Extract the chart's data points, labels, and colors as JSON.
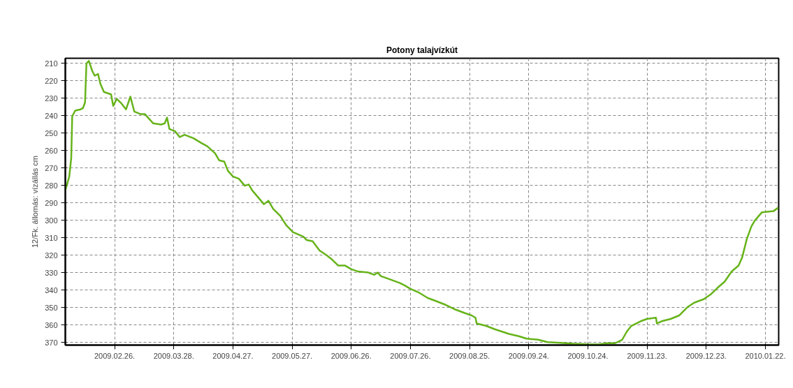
{
  "chart_data": {
    "type": "line",
    "title": "Potony talajvízkút",
    "ylabel": "12/Fk. állomás: vízállás cm",
    "x": [
      "2009-02-01",
      "2009-02-03",
      "2009-02-04",
      "2009-02-04T12:00",
      "2009-02-06",
      "2009-02-08T19:00",
      "2009-02-09T22:00",
      "2009-02-11",
      "2009-02-11T17:00",
      "2009-02-12T22:00",
      "2009-02-14T17:00",
      "2009-02-15T22:00",
      "2009-02-17T14:00",
      "2009-02-18T19:00",
      "2009-02-20T14:00",
      "2009-02-24T05:00",
      "2009-02-25T07:00",
      "2009-02-27T02:00",
      "2009-03-01T12:00",
      "2009-03-03T19:00",
      "2009-03-06",
      "2009-03-08",
      "2009-03-11",
      "2009-03-13T07:00",
      "2009-03-17T12:00",
      "2009-03-21T14:00",
      "2009-03-23T10:00",
      "2009-03-24T14:00",
      "2009-03-25T19:00",
      "2009-03-28T17:00",
      "2009-03-31",
      "2009-04-02T12:00",
      "2009-04-07",
      "2009-04-10T19:00",
      "2009-04-14",
      "2009-04-17T22:00",
      "2009-04-20",
      "2009-04-22T14:00",
      "2009-04-24T10:00",
      "2009-04-27",
      "2009-04-30",
      "2009-05-03",
      "2009-05-05",
      "2009-05-06T19:00",
      "2009-05-12T17:00",
      "2009-05-15",
      "2009-05-17T10:00",
      "2009-05-21",
      "2009-05-24",
      "2009-05-27T10:00",
      "2009-06-01T17:00",
      "2009-06-03T10:00",
      "2009-06-06T10:00",
      "2009-06-09T22:00",
      "2009-06-13T12:00",
      "2009-06-16T10:00",
      "2009-06-19T10:00",
      "2009-06-22T22:00",
      "2009-06-25T22:00",
      "2009-06-29T10:00",
      "2009-07-04T17:00",
      "2009-07-07T17:00",
      "2009-07-09T10:00",
      "2009-07-11",
      "2009-07-15T22:00",
      "2009-07-20T17:00",
      "2009-07-23",
      "2009-07-26",
      "2009-07-30",
      "2009-08-03T19:00",
      "2009-08-08T12:00",
      "2009-08-13",
      "2009-08-18",
      "2009-08-22T17:00",
      "2009-08-26",
      "2009-08-28",
      "2009-08-28T14:00",
      "2009-09-02T10:00",
      "2009-09-07",
      "2009-09-14",
      "2009-09-18T22:00",
      "2009-09-22T22:00",
      "2009-09-28T19:00",
      "2009-10-03T12:00",
      "2009-10-10",
      "2009-10-16T12:00",
      "2009-10-24T19:00",
      "2009-10-29T12:00",
      "2009-11-03",
      "2009-11-06T19:00",
      "2009-11-10T10:00",
      "2009-11-12T17:00",
      "2009-11-15",
      "2009-11-19T19:00",
      "2009-11-23",
      "2009-11-27T12:00",
      "2009-11-28",
      "2009-11-30T10:00",
      "2009-12-05",
      "2009-12-09T07:00",
      "2009-12-13T10:00",
      "2009-12-16T22:00",
      "2009-12-21T17:00",
      "2009-12-25T05:00",
      "2009-12-28T19:00",
      "2010-01-01T07:00",
      "2010-01-04T22:00",
      "2010-01-08T10:00",
      "2010-01-10T05:00",
      "2010-01-12T14:00",
      "2010-01-14T22:00",
      "2010-01-16T17:00",
      "2010-01-20T05:00",
      "2010-01-26T02:00",
      "2010-01-28T12:00"
    ],
    "series": [
      {
        "color": "#66b31a",
        "values": [
          282.8,
          274.8,
          264.2,
          240.3,
          237.0,
          236.3,
          235.6,
          232.3,
          210.0,
          208.5,
          214.4,
          217.0,
          216.0,
          221.7,
          226.3,
          227.7,
          234.3,
          230.3,
          233.0,
          236.3,
          229.0,
          237.6,
          239.0,
          239.0,
          244.3,
          245.0,
          244.3,
          241.0,
          247.6,
          248.9,
          252.2,
          250.9,
          252.9,
          255.5,
          257.5,
          261.5,
          265.5,
          266.2,
          271.5,
          274.8,
          276.1,
          280.1,
          279.4,
          282.8,
          290.7,
          288.7,
          293.4,
          297.4,
          302.7,
          306.7,
          309.3,
          311.3,
          312.0,
          317.3,
          320.0,
          322.6,
          325.9,
          325.9,
          327.9,
          329.3,
          329.9,
          331.2,
          329.9,
          331.9,
          333.9,
          335.9,
          337.2,
          339.2,
          341.2,
          344.5,
          346.5,
          348.5,
          351.2,
          353.2,
          354.5,
          355.8,
          359.1,
          360.5,
          362.5,
          365.1,
          366.4,
          367.8,
          368.4,
          369.8,
          370.2,
          370.7,
          371.1,
          371.1,
          370.4,
          370.4,
          368.4,
          363.8,
          360.5,
          357.8,
          356.5,
          355.8,
          359.1,
          357.8,
          356.5,
          354.5,
          349.8,
          347.2,
          345.2,
          342.5,
          338.6,
          335.2,
          329.3,
          325.9,
          321.3,
          310.7,
          303.4,
          300.0,
          295.4,
          294.7,
          292.7
        ]
      }
    ],
    "xlim": [
      "2009-02-01",
      "2010-01-28T18:00"
    ],
    "xticks": [
      {
        "value": "2009-02-26",
        "label": "2009.02.26."
      },
      {
        "value": "2009-03-28",
        "label": "2009.03.28."
      },
      {
        "value": "2009-04-27",
        "label": "2009.04.27."
      },
      {
        "value": "2009-05-27",
        "label": "2009.05.27."
      },
      {
        "value": "2009-06-26",
        "label": "2009.06.26."
      },
      {
        "value": "2009-07-26",
        "label": "2009.07.26."
      },
      {
        "value": "2009-08-25",
        "label": "2009.08.25."
      },
      {
        "value": "2009-09-24",
        "label": "2009.09.24."
      },
      {
        "value": "2009-10-24",
        "label": "2009.10.24."
      },
      {
        "value": "2009-11-23",
        "label": "2009.11.23."
      },
      {
        "value": "2009-12-23",
        "label": "2009.12.23."
      },
      {
        "value": "2010-01-22",
        "label": "2010.01.22."
      }
    ],
    "ylim": [
      371.5,
      207
    ],
    "yticks": [
      210,
      220,
      230,
      240,
      250,
      260,
      270,
      280,
      290,
      300,
      310,
      320,
      330,
      340,
      350,
      360,
      370
    ],
    "grid": true,
    "line_style": "solid",
    "marker": "none"
  }
}
